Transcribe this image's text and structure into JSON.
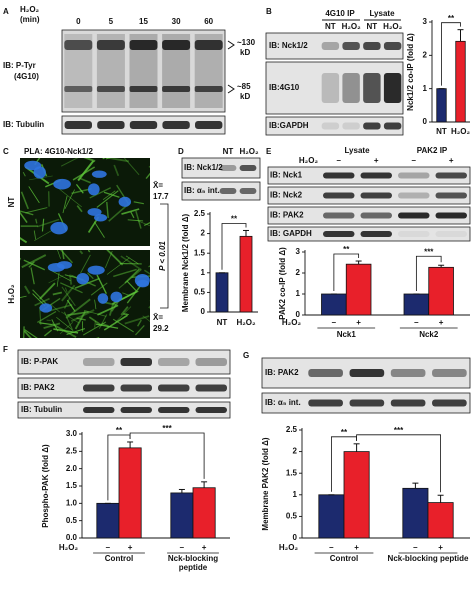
{
  "chart_data": [
    {
      "type": "bar",
      "categories": [
        "NT",
        "H₂O₂"
      ],
      "values": [
        1,
        2.42
      ],
      "errors": [
        0,
        0.35
      ],
      "colors": [
        "#1c2a6e",
        "#e8202a"
      ],
      "ylabel": "Nck1/2 co-IP (fold Δ)",
      "ylim": [
        0,
        3
      ],
      "yticks": [
        0,
        1,
        2,
        3
      ],
      "annotations": [
        "**"
      ]
    },
    {
      "type": "bar",
      "categories": [
        "NT",
        "H₂O₂"
      ],
      "values": [
        1,
        1.93
      ],
      "errors": [
        0,
        0.15
      ],
      "colors": [
        "#1c2a6e",
        "#e8202a"
      ],
      "ylabel": "Membrane Nck1/2 (fold Δ)",
      "ylim": [
        0,
        2.5
      ],
      "yticks": [
        0,
        0.5,
        1,
        1.5,
        2,
        2.5
      ],
      "annotations": [
        "**"
      ]
    },
    {
      "type": "bar",
      "categories": [
        "Nck1",
        "Nck2"
      ],
      "group_label": "H₂O₂",
      "series": [
        {
          "name": "–",
          "color": "#1c2a6e",
          "values": [
            1,
            1
          ],
          "errors": [
            0,
            0
          ]
        },
        {
          "name": "+",
          "color": "#e8202a",
          "values": [
            2.42,
            2.27
          ],
          "errors": [
            0.15,
            0.1
          ]
        }
      ],
      "ylabel": "PAK2 co-IP (fold Δ)",
      "ylim": [
        0,
        3
      ],
      "yticks": [
        0,
        1,
        2,
        3
      ],
      "annotations": [
        "**",
        "***"
      ]
    },
    {
      "type": "bar",
      "categories": [
        "Control",
        "Nck-blocking peptide"
      ],
      "group_label": "H₂O₂",
      "series": [
        {
          "name": "–",
          "color": "#1c2a6e",
          "values": [
            1.0,
            1.3
          ],
          "errors": [
            0,
            0.1
          ]
        },
        {
          "name": "+",
          "color": "#e8202a",
          "values": [
            2.6,
            1.45
          ],
          "errors": [
            0.17,
            0.17
          ]
        }
      ],
      "ylabel": "Phospho-PAK (fold Δ)",
      "ylim": [
        0,
        3
      ],
      "yticks": [
        {
          "value": 0,
          "label": "0.0"
        },
        0.5,
        {
          "value": 1,
          "label": "1.0"
        },
        1.5,
        {
          "value": 2,
          "label": "2.0"
        },
        2.5,
        {
          "value": 3,
          "label": "3.0"
        }
      ],
      "annotations": [
        "**",
        "***"
      ]
    },
    {
      "type": "bar",
      "categories": [
        "Control",
        "Nck-blocking peptide"
      ],
      "group_label": "H₂O₂",
      "series": [
        {
          "name": "–",
          "color": "#1c2a6e",
          "values": [
            1,
            1.15
          ],
          "errors": [
            0,
            0.12
          ]
        },
        {
          "name": "+",
          "color": "#e8202a",
          "values": [
            2.0,
            0.82
          ],
          "errors": [
            0.18,
            0.17
          ]
        }
      ],
      "ylabel": "Membrane PAK2 (fold Δ)",
      "ylim": [
        0,
        2.5
      ],
      "yticks": [
        0,
        0.5,
        1,
        1.5,
        2,
        2.5
      ],
      "annotations": [
        "**",
        "***"
      ]
    }
  ],
  "panels": {
    "A": {
      "label": "A",
      "treatment": "H₂O₂",
      "unit": "(min)",
      "lanes": [
        "0",
        "5",
        "15",
        "30",
        "60"
      ],
      "blots": [
        "IB: P-Tyr",
        "(4G10)",
        "IB: Tubulin"
      ],
      "markers": [
        {
          "size": "~130",
          "unit": "kD"
        },
        {
          "size": "~85",
          "unit": "kD"
        }
      ]
    },
    "B": {
      "label": "B",
      "groups": [
        "4G10 IP",
        "Lysate"
      ],
      "lanes": [
        "NT",
        "H₂O₂",
        "NT",
        "H₂O₂"
      ],
      "blots": [
        "IB: Nck1/2",
        "IB:4G10",
        "IB:GAPDH"
      ]
    },
    "C": {
      "label": "C",
      "title": "PLA: 4G10-Nck1/2",
      "rows": [
        "NT",
        "H₂O₂"
      ],
      "means": [
        {
          "symbol": "X̄=",
          "value": "17.7"
        },
        {
          "symbol": "X̄=",
          "value": "29.2"
        }
      ],
      "stat": "P < 0.01"
    },
    "D": {
      "label": "D",
      "lanes": [
        "NT",
        "H₂O₂"
      ],
      "blots": [
        "IB: Nck1/2",
        "IB: α₅ int."
      ]
    },
    "E": {
      "label": "E",
      "treatment": "H₂O₂",
      "groups": [
        "Lysate",
        "PAK2 IP"
      ],
      "lanes": [
        "–",
        "+",
        "–",
        "+"
      ],
      "blots": [
        "IB: Nck1",
        "IB: Nck2",
        "IB: PAK2",
        "IB: GAPDH"
      ]
    },
    "F": {
      "label": "F",
      "blots": [
        "IB: P-PAK",
        "IB: PAK2",
        "IB: Tubulin"
      ]
    },
    "G": {
      "label": "G",
      "blots": [
        "IB: PAK2",
        "IB: α₅ int."
      ]
    }
  }
}
